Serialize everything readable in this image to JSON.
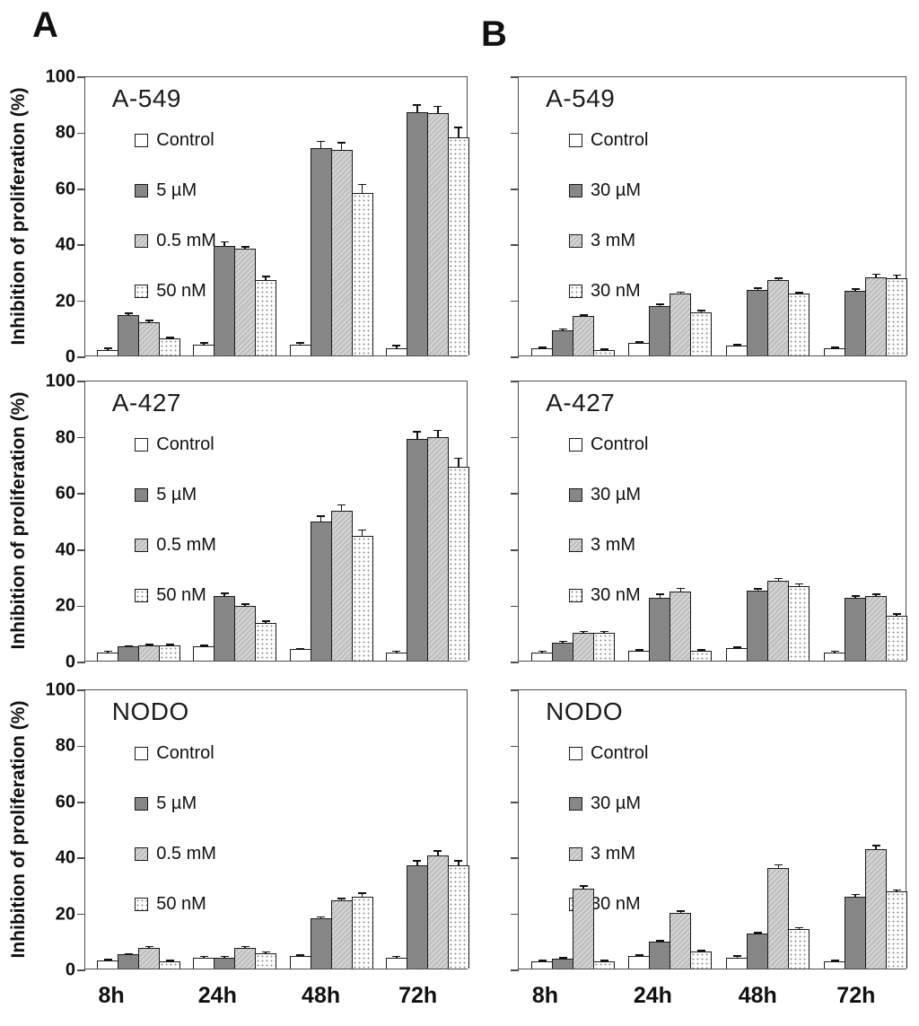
{
  "panel_labels": {
    "a": "A",
    "b": "B"
  },
  "y_axis": {
    "title": "Inhibition of proliferation (%)",
    "ticks": [
      0,
      20,
      40,
      60,
      80,
      100
    ],
    "max": 100
  },
  "x_categories": [
    "8h",
    "24h",
    "48h",
    "72h"
  ],
  "colors": {
    "bar_dark": "#8a8a8a",
    "bar_hatch_gray": "#c0c0c0",
    "bar_outline": "#1a1a1a",
    "frame": "#4d4d4d",
    "text": "#111111"
  },
  "chart_data": [
    {
      "type": "bar",
      "panel": "A",
      "title": "A-549",
      "row": 0,
      "col": 0,
      "show_y_labels": true,
      "show_x_labels": false,
      "ylim": [
        0,
        100
      ],
      "grid": false,
      "legend_position": "upper-left-inside",
      "categories": [
        "8h",
        "24h",
        "48h",
        "72h"
      ],
      "series": [
        {
          "name": "Control",
          "pattern": "white",
          "values": [
            2,
            4,
            4,
            2.5
          ],
          "errors": [
            0.5,
            0.5,
            0.5,
            1
          ]
        },
        {
          "name": "5 µM",
          "pattern": "dark",
          "values": [
            14.5,
            39,
            74,
            87
          ],
          "errors": [
            0.5,
            1.5,
            2.5,
            2.5
          ]
        },
        {
          "name": "0.5 mM",
          "pattern": "hatch",
          "values": [
            12,
            38,
            73.5,
            86.5
          ],
          "errors": [
            0.5,
            0.8,
            2.5,
            2.5
          ]
        },
        {
          "name": "50 nM",
          "pattern": "dots",
          "values": [
            6,
            27,
            58,
            78
          ],
          "errors": [
            0.5,
            1.2,
            3,
            3.5
          ]
        }
      ]
    },
    {
      "type": "bar",
      "panel": "B",
      "title": "A-549",
      "row": 0,
      "col": 1,
      "show_y_labels": false,
      "show_x_labels": false,
      "ylim": [
        0,
        100
      ],
      "grid": false,
      "legend_position": "upper-left-inside",
      "categories": [
        "8h",
        "24h",
        "48h",
        "72h"
      ],
      "series": [
        {
          "name": "Control",
          "pattern": "white",
          "values": [
            2.5,
            4.5,
            3.5,
            2.5
          ],
          "errors": [
            0.3,
            0.4,
            0.3,
            0.3
          ]
        },
        {
          "name": "30 µM",
          "pattern": "dark",
          "values": [
            9,
            17.5,
            23.5,
            23
          ],
          "errors": [
            0.4,
            0.7,
            0.6,
            0.8
          ]
        },
        {
          "name": "3 mM",
          "pattern": "hatch",
          "values": [
            14,
            22,
            27,
            28
          ],
          "errors": [
            0.4,
            0.6,
            0.5,
            1
          ]
        },
        {
          "name": "30 nM",
          "pattern": "dots",
          "values": [
            2,
            15.5,
            22,
            27.5
          ],
          "errors": [
            0.3,
            0.5,
            0.5,
            1.2
          ]
        }
      ]
    },
    {
      "type": "bar",
      "panel": "A",
      "title": "A-427",
      "row": 1,
      "col": 0,
      "show_y_labels": true,
      "show_x_labels": false,
      "ylim": [
        0,
        100
      ],
      "grid": false,
      "legend_position": "upper-left-inside",
      "categories": [
        "8h",
        "24h",
        "48h",
        "72h"
      ],
      "series": [
        {
          "name": "Control",
          "pattern": "white",
          "values": [
            3,
            5,
            4,
            3
          ],
          "errors": [
            0.3,
            0.4,
            0.3,
            0.3
          ]
        },
        {
          "name": "5 µM",
          "pattern": "dark",
          "values": [
            5,
            23,
            49.5,
            79
          ],
          "errors": [
            0.3,
            1,
            2,
            2.5
          ]
        },
        {
          "name": "0.5 mM",
          "pattern": "hatch",
          "values": [
            5.5,
            19.5,
            53.5,
            79.5
          ],
          "errors": [
            0.3,
            0.7,
            2,
            2.5
          ]
        },
        {
          "name": "50 nM",
          "pattern": "dots",
          "values": [
            5.5,
            13.5,
            44.5,
            69
          ],
          "errors": [
            0.3,
            0.6,
            2,
            3
          ]
        }
      ]
    },
    {
      "type": "bar",
      "panel": "B",
      "title": "A-427",
      "row": 1,
      "col": 1,
      "show_y_labels": false,
      "show_x_labels": false,
      "ylim": [
        0,
        100
      ],
      "grid": false,
      "legend_position": "upper-left-inside",
      "categories": [
        "8h",
        "24h",
        "48h",
        "72h"
      ],
      "series": [
        {
          "name": "Control",
          "pattern": "white",
          "values": [
            3,
            3.5,
            4.5,
            3
          ],
          "errors": [
            0.3,
            0.3,
            0.3,
            0.4
          ]
        },
        {
          "name": "30 µM",
          "pattern": "dark",
          "values": [
            6.5,
            22.5,
            25,
            22.5
          ],
          "errors": [
            0.4,
            1.2,
            0.6,
            0.6
          ]
        },
        {
          "name": "3 mM",
          "pattern": "hatch",
          "values": [
            10,
            24.5,
            28.5,
            23
          ],
          "errors": [
            0.4,
            1.2,
            0.8,
            0.6
          ]
        },
        {
          "name": "30 nM",
          "pattern": "dots",
          "values": [
            10,
            3.5,
            26.5,
            16
          ],
          "errors": [
            0.4,
            0.3,
            0.8,
            0.6
          ]
        }
      ]
    },
    {
      "type": "bar",
      "panel": "A",
      "title": "NODO",
      "row": 2,
      "col": 0,
      "show_y_labels": true,
      "show_x_labels": true,
      "ylim": [
        0,
        100
      ],
      "grid": false,
      "legend_position": "upper-left-inside",
      "categories": [
        "8h",
        "24h",
        "48h",
        "72h"
      ],
      "series": [
        {
          "name": "Control",
          "pattern": "white",
          "values": [
            3,
            4,
            4.5,
            4
          ],
          "errors": [
            0.3,
            0.3,
            0.3,
            0.3
          ]
        },
        {
          "name": "5 µM",
          "pattern": "dark",
          "values": [
            5,
            4,
            18,
            37
          ],
          "errors": [
            0.3,
            0.3,
            0.5,
            1.5
          ]
        },
        {
          "name": "0.5 mM",
          "pattern": "hatch",
          "values": [
            7.5,
            7.5,
            24.5,
            40.5
          ],
          "errors": [
            0.4,
            0.4,
            0.6,
            1.5
          ]
        },
        {
          "name": "50 nM",
          "pattern": "dots",
          "values": [
            2.5,
            5.5,
            25.5,
            37
          ],
          "errors": [
            0.3,
            0.4,
            1.5,
            1.5
          ]
        }
      ]
    },
    {
      "type": "bar",
      "panel": "B",
      "title": "NODO",
      "row": 2,
      "col": 1,
      "show_y_labels": false,
      "show_x_labels": true,
      "ylim": [
        0,
        100
      ],
      "grid": false,
      "legend_position": "upper-left-inside",
      "categories": [
        "8h",
        "24h",
        "48h",
        "72h"
      ],
      "series": [
        {
          "name": "Control",
          "pattern": "white",
          "values": [
            2.5,
            4.5,
            4,
            2.5
          ],
          "errors": [
            0.4,
            0.4,
            0.4,
            0.3
          ]
        },
        {
          "name": "30 µM",
          "pattern": "dark",
          "values": [
            3.5,
            9.5,
            12.5,
            25.5
          ],
          "errors": [
            0.3,
            0.4,
            0.4,
            1
          ]
        },
        {
          "name": "3 mM",
          "pattern": "hatch",
          "values": [
            28.5,
            20,
            36,
            42.5
          ],
          "errors": [
            1,
            0.5,
            1,
            1.5
          ]
        },
        {
          "name": "30 nM",
          "pattern": "dots",
          "values": [
            2.5,
            6,
            14,
            27.5
          ],
          "errors": [
            0.3,
            0.4,
            0.6,
            0.6
          ]
        }
      ]
    }
  ]
}
